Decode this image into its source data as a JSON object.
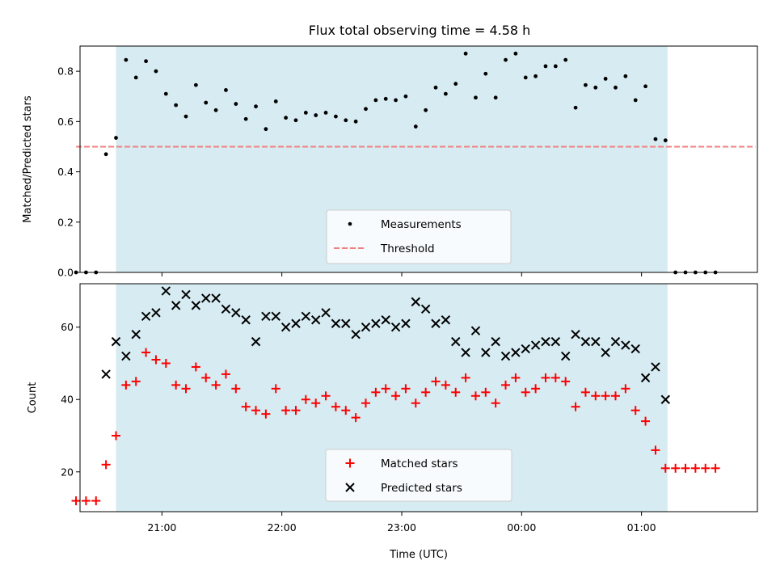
{
  "colors": {
    "shade": "#add8e6",
    "threshold": "#f08080",
    "matched": "#ff0000",
    "predicted": "#000000",
    "measurement": "#000000"
  },
  "chart_data": {
    "type": "scatter",
    "title": "Flux total observing time = 4.58 h",
    "xlabel": "Time (UTC)",
    "x_tick_labels": [
      "21:00",
      "22:00",
      "23:00",
      "00:00",
      "01:00"
    ],
    "x_ticks": [
      "21:00",
      "22:00",
      "23:00",
      "00:00",
      "01:00"
    ],
    "xlim": [
      "20:19",
      "01:58"
    ],
    "shaded_interval": [
      "20:37",
      "01:13"
    ],
    "panels": [
      {
        "ylabel": "Matched/Predicted stars",
        "ylim": [
          0,
          0.9
        ],
        "y_ticks": [
          0.0,
          0.2,
          0.4,
          0.6,
          0.8
        ],
        "y_tick_labels": [
          "0.0",
          "0.2",
          "0.4",
          "0.6",
          "0.8"
        ],
        "legend": "bottom-center",
        "threshold": {
          "name": "Threshold",
          "value": 0.5,
          "x_range": [
            "20:17",
            "01:57"
          ]
        },
        "series": [
          {
            "name": "Measurements",
            "marker": "dot",
            "x": [
              "20:17",
              "20:22",
              "20:27",
              "20:32",
              "20:37",
              "20:42",
              "20:47",
              "20:52",
              "20:57",
              "21:02",
              "21:07",
              "21:12",
              "21:17",
              "21:22",
              "21:27",
              "21:32",
              "21:37",
              "21:42",
              "21:47",
              "21:52",
              "21:57",
              "22:02",
              "22:07",
              "22:12",
              "22:17",
              "22:22",
              "22:27",
              "22:32",
              "22:37",
              "22:42",
              "22:47",
              "22:52",
              "22:57",
              "23:02",
              "23:07",
              "23:12",
              "23:17",
              "23:22",
              "23:27",
              "23:32",
              "23:37",
              "23:42",
              "23:47",
              "23:52",
              "23:57",
              "00:02",
              "00:07",
              "00:12",
              "00:17",
              "00:22",
              "00:27",
              "00:32",
              "00:37",
              "00:42",
              "00:47",
              "00:52",
              "00:57",
              "01:02",
              "01:07",
              "01:12",
              "01:17",
              "01:22",
              "01:27",
              "01:32",
              "01:37"
            ],
            "y": [
              0.0,
              0.0,
              0.0,
              0.47,
              0.535,
              0.845,
              0.775,
              0.84,
              0.8,
              0.71,
              0.665,
              0.62,
              0.745,
              0.675,
              0.645,
              0.725,
              0.67,
              0.61,
              0.66,
              0.57,
              0.68,
              0.615,
              0.605,
              0.635,
              0.625,
              0.635,
              0.62,
              0.605,
              0.6,
              0.65,
              0.685,
              0.69,
              0.685,
              0.7,
              0.58,
              0.645,
              0.735,
              0.71,
              0.75,
              0.87,
              0.695,
              0.79,
              0.695,
              0.845,
              0.87,
              0.775,
              0.78,
              0.82,
              0.82,
              0.845,
              0.655,
              0.745,
              0.735,
              0.77,
              0.735,
              0.78,
              0.685,
              0.74,
              0.53,
              0.525,
              0.0,
              0.0,
              0.0,
              0.0,
              0.0
            ]
          }
        ]
      },
      {
        "ylabel": "Count",
        "ylim": [
          9,
          72
        ],
        "y_ticks": [
          20,
          40,
          60
        ],
        "y_tick_labels": [
          "20",
          "40",
          "60"
        ],
        "legend": "bottom-center",
        "series": [
          {
            "name": "Matched stars",
            "marker": "plus",
            "x": [
              "20:17",
              "20:22",
              "20:27",
              "20:32",
              "20:37",
              "20:42",
              "20:47",
              "20:52",
              "20:57",
              "21:02",
              "21:07",
              "21:12",
              "21:17",
              "21:22",
              "21:27",
              "21:32",
              "21:37",
              "21:42",
              "21:47",
              "21:52",
              "21:57",
              "22:02",
              "22:07",
              "22:12",
              "22:17",
              "22:22",
              "22:27",
              "22:32",
              "22:37",
              "22:42",
              "22:47",
              "22:52",
              "22:57",
              "23:02",
              "23:07",
              "23:12",
              "23:17",
              "23:22",
              "23:27",
              "23:32",
              "23:37",
              "23:42",
              "23:47",
              "23:52",
              "23:57",
              "00:02",
              "00:07",
              "00:12",
              "00:17",
              "00:22",
              "00:27",
              "00:32",
              "00:37",
              "00:42",
              "00:47",
              "00:52",
              "00:57",
              "01:02",
              "01:07",
              "01:12",
              "01:17",
              "01:22",
              "01:27",
              "01:32",
              "01:37"
            ],
            "y": [
              12,
              12,
              12,
              22,
              30,
              44,
              45,
              53,
              51,
              50,
              44,
              43,
              49,
              46,
              44,
              47,
              43,
              38,
              37,
              36,
              43,
              37,
              37,
              40,
              39,
              41,
              38,
              37,
              35,
              39,
              42,
              43,
              41,
              43,
              39,
              42,
              45,
              44,
              42,
              46,
              41,
              42,
              39,
              44,
              46,
              42,
              43,
              46,
              46,
              45,
              38,
              42,
              41,
              41,
              41,
              43,
              37,
              34,
              26,
              21,
              21,
              21,
              21,
              21,
              21
            ]
          },
          {
            "name": "Predicted stars",
            "marker": "x",
            "x": [
              "20:32",
              "20:37",
              "20:42",
              "20:47",
              "20:52",
              "20:57",
              "21:02",
              "21:07",
              "21:12",
              "21:17",
              "21:22",
              "21:27",
              "21:32",
              "21:37",
              "21:42",
              "21:47",
              "21:52",
              "21:57",
              "22:02",
              "22:07",
              "22:12",
              "22:17",
              "22:22",
              "22:27",
              "22:32",
              "22:37",
              "22:42",
              "22:47",
              "22:52",
              "22:57",
              "23:02",
              "23:07",
              "23:12",
              "23:17",
              "23:22",
              "23:27",
              "23:32",
              "23:37",
              "23:42",
              "23:47",
              "23:52",
              "23:57",
              "00:02",
              "00:07",
              "00:12",
              "00:17",
              "00:22",
              "00:27",
              "00:32",
              "00:37",
              "00:42",
              "00:47",
              "00:52",
              "00:57",
              "01:02",
              "01:07",
              "01:12"
            ],
            "y": [
              47,
              56,
              52,
              58,
              63,
              64,
              70,
              66,
              69,
              66,
              68,
              68,
              65,
              64,
              62,
              56,
              63,
              63,
              60,
              61,
              63,
              62,
              64,
              61,
              61,
              58,
              60,
              61,
              62,
              60,
              61,
              67,
              65,
              61,
              62,
              56,
              53,
              59,
              53,
              56,
              52,
              53,
              54,
              55,
              56,
              56,
              52,
              58,
              56,
              56,
              53,
              56,
              55,
              54,
              46,
              49,
              40
            ]
          }
        ]
      }
    ]
  }
}
